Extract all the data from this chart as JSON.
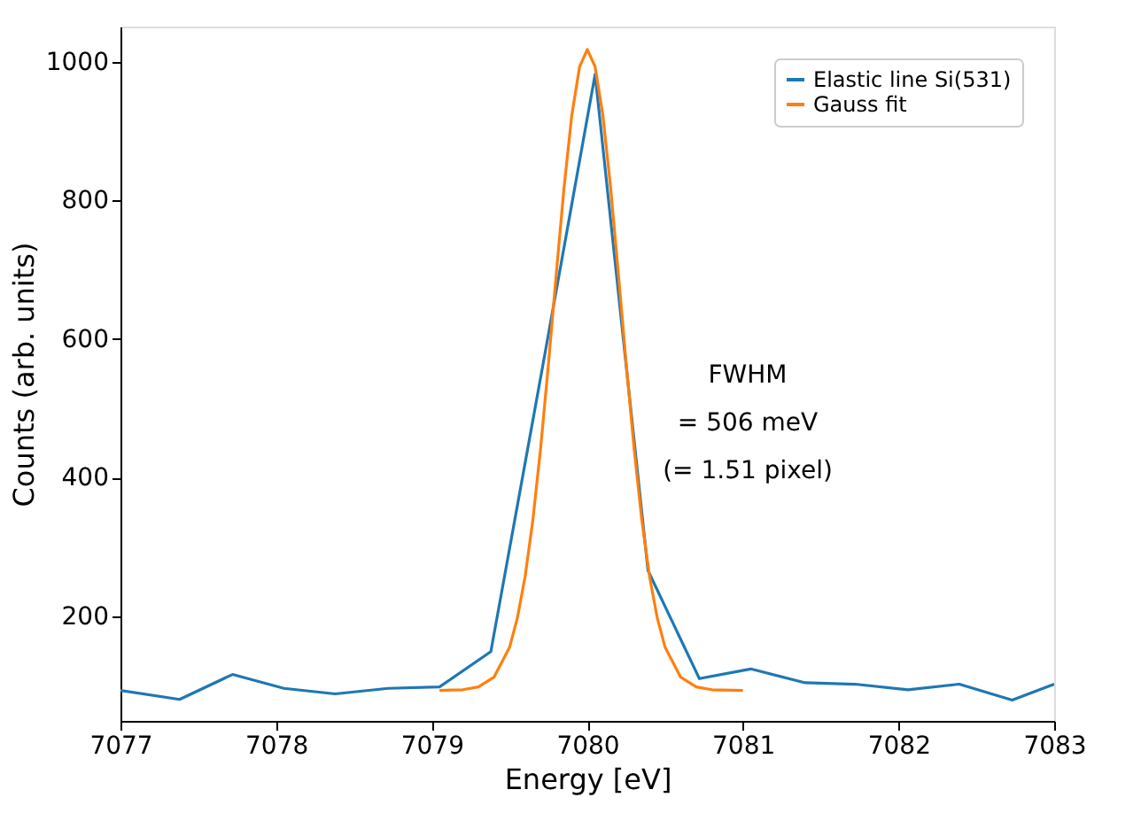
{
  "chart_data": {
    "type": "line",
    "xlabel": "Energy [eV]",
    "ylabel": "Counts (arb. units)",
    "xlim": [
      7077,
      7083
    ],
    "ylim": [
      49,
      1051
    ],
    "xticks": [
      7077,
      7078,
      7079,
      7080,
      7081,
      7082,
      7083
    ],
    "yticks": [
      200,
      400,
      600,
      800,
      1000
    ],
    "grid": false,
    "legend": "top right",
    "marker": "none",
    "line_style": "solid",
    "annotations": [
      "FWHM\n= 506 meV\n(= 1.51 pixel)"
    ],
    "series": [
      {
        "name": "Elastic line Si(531)",
        "color": "#1f77b4",
        "x": [
          7077,
          7077.38,
          7077.72,
          7078.05,
          7078.38,
          7078.72,
          7079.05,
          7079.38,
          7079.71,
          7080.05,
          7080.39,
          7080.72,
          7081.05,
          7081.4,
          7081.72,
          7082.06,
          7082.39,
          7082.73,
          7083
        ],
        "values": [
          93,
          80,
          116,
          96,
          88,
          96,
          98,
          149,
          557,
          982,
          266,
          110,
          124,
          104,
          102,
          94,
          102,
          79,
          102
        ]
      },
      {
        "name": "Gauss fit",
        "color": "#ff7f0e",
        "x": [
          7079.05,
          7079.2,
          7079.3,
          7079.4,
          7079.5,
          7079.55,
          7079.6,
          7079.65,
          7079.7,
          7079.75,
          7079.8,
          7079.85,
          7079.9,
          7079.95,
          7080,
          7080.05,
          7080.1,
          7080.15,
          7080.2,
          7080.25,
          7080.3,
          7080.35,
          7080.4,
          7080.45,
          7080.5,
          7080.6,
          7080.7,
          7080.8,
          7081
        ],
        "values": [
          93,
          94,
          98,
          112,
          155,
          197,
          257,
          339,
          443,
          564,
          693,
          818,
          923,
          993,
          1018,
          993,
          923,
          818,
          693,
          564,
          443,
          339,
          257,
          197,
          155,
          112,
          98,
          94,
          93
        ]
      }
    ]
  }
}
